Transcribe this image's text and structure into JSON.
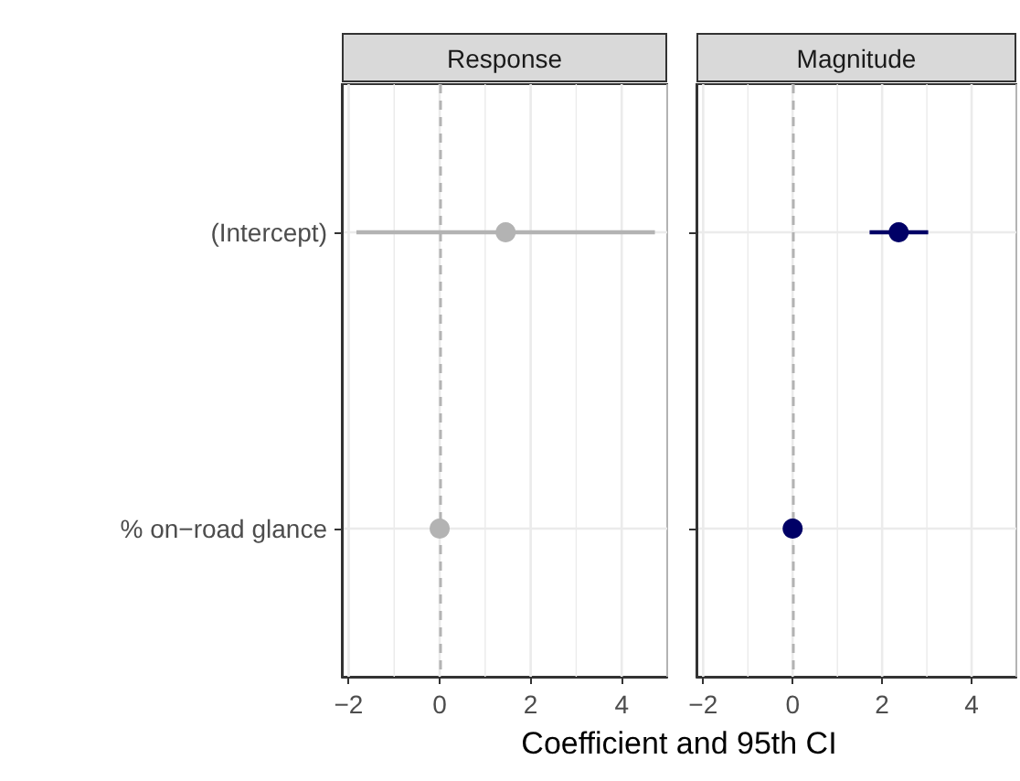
{
  "chart_data": [
    {
      "type": "scatter",
      "title": "Response",
      "xlabel": "Coefficient and 95th CI",
      "orientation": "horizontal",
      "categories": [
        "(Intercept)",
        "% on−road glance"
      ],
      "series": [
        {
          "color": "#b3b3b3",
          "values": [
            1.45,
            0
          ],
          "errors": [
            [
              -1.83,
              4.73
            ],
            null
          ]
        }
      ],
      "xlim": [
        -2.15,
        5.0
      ],
      "xticks": [
        -2,
        0,
        2,
        4
      ],
      "grid": true,
      "marker": "circle",
      "ref_lines": [
        {
          "axis": "x",
          "value": 0,
          "color": "#b3b3b3",
          "line_style": "dashed"
        }
      ]
    },
    {
      "type": "scatter",
      "title": "Magnitude",
      "orientation": "horizontal",
      "categories": [
        null,
        null
      ],
      "series": [
        {
          "color": "#000066",
          "values": [
            2.37,
            0
          ],
          "errors": [
            [
              1.72,
              3.03
            ],
            null
          ]
        }
      ],
      "xlim": [
        -2.15,
        5.0
      ],
      "xticks": [
        -2,
        0,
        2,
        4
      ],
      "grid": true,
      "marker": "circle",
      "tick_labels": "x",
      "ref_lines": [
        {
          "axis": "x",
          "value": 0,
          "color": "#b3b3b3",
          "line_style": "dashed"
        }
      ]
    }
  ]
}
